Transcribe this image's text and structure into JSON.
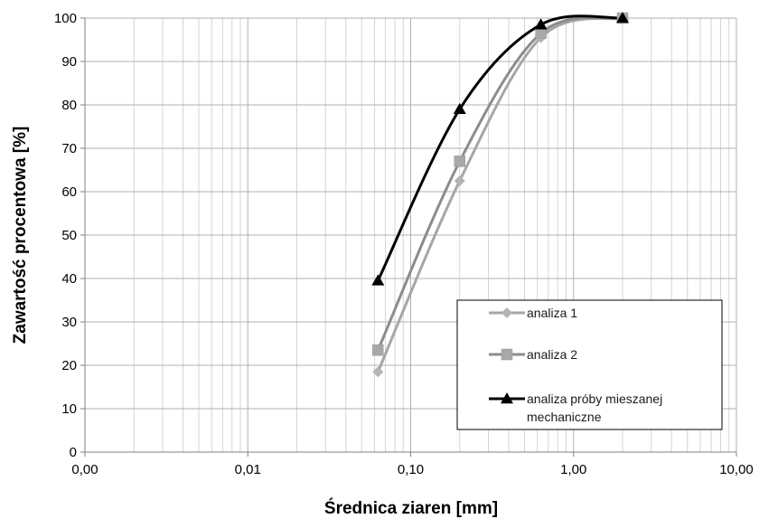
{
  "chart_data": {
    "type": "line",
    "title": "",
    "xlabel": "Średnica ziaren [mm]",
    "ylabel": "Zawartość procentowa [%]",
    "x_scale": "log",
    "xlim": [
      0.001,
      10
    ],
    "ylim": [
      0,
      100
    ],
    "x_ticks": [
      0.001,
      0.01,
      0.1,
      1,
      10
    ],
    "x_tick_labels": [
      "0,00",
      "0,01",
      "0,10",
      "1,00",
      "10,00"
    ],
    "y_ticks": [
      0,
      10,
      20,
      30,
      40,
      50,
      60,
      70,
      80,
      90,
      100
    ],
    "y_tick_labels": [
      "0",
      "10",
      "20",
      "30",
      "40",
      "50",
      "60",
      "70",
      "80",
      "90",
      "100"
    ],
    "grid": true,
    "legend_position": "bottom-right",
    "series": [
      {
        "name": "analiza 1",
        "color": "#a6a6a6",
        "marker": "diamond",
        "points": [
          [
            0.063,
            18.5
          ],
          [
            0.2,
            62.5
          ],
          [
            0.63,
            95.5
          ],
          [
            2.0,
            100
          ]
        ]
      },
      {
        "name": "analiza 2",
        "color": "#8c8c8c",
        "marker": "square",
        "points": [
          [
            0.063,
            23.5
          ],
          [
            0.2,
            67
          ],
          [
            0.63,
            96.5
          ],
          [
            2.0,
            100
          ]
        ]
      },
      {
        "name": "analiza próby mieszanej mechaniczne",
        "legend_lines": [
          "analiza próby mieszanej",
          "mechaniczne"
        ],
        "color": "#000000",
        "marker": "triangle",
        "points": [
          [
            0.063,
            39.5
          ],
          [
            0.2,
            79
          ],
          [
            0.63,
            98.5
          ],
          [
            2.0,
            100
          ]
        ]
      }
    ]
  }
}
